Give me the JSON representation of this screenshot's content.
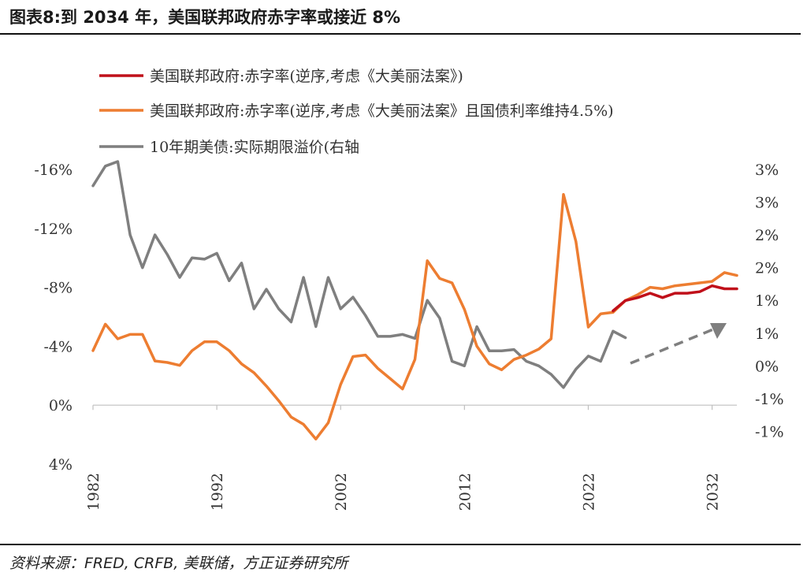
{
  "title": "图表8:到 2034 年，美国联邦政府赤字率或接近 8%",
  "source": "资料来源：FRED, CRFB, 美联储，方正证券研究所",
  "colors": {
    "series1": "#C0101A",
    "series2": "#ED7D31",
    "series3": "#7F7F7F",
    "arrow": "#7F7F7F"
  },
  "chart_data": {
    "type": "line",
    "title": "图表8:到 2034 年，美国联邦政府赤字率或接近 8%",
    "x_ticks": [
      "1982",
      "1992",
      "2002",
      "2012",
      "2022",
      "2032"
    ],
    "x_range": [
      1982,
      2034
    ],
    "y_left": {
      "range": [
        4,
        -16
      ],
      "ticks": [
        -16,
        -12,
        -8,
        -4,
        0,
        4
      ],
      "tick_labels": [
        "-16%",
        "-12%",
        "-8%",
        "-4%",
        "0%",
        "4%"
      ],
      "inverted": true
    },
    "y_right": {
      "range": [
        -1.5,
        3
      ],
      "ticks": [
        3,
        2.5,
        2,
        1.5,
        1,
        0.5,
        0,
        -0.5,
        -1
      ],
      "tick_labels": [
        "3%",
        "3%",
        "2%",
        "2%",
        "1%",
        "1%",
        "0%",
        "-1%",
        "-1%"
      ]
    },
    "legend": [
      "美国联邦政府:赤字率(逆序,考虑《大美丽法案》)",
      "美国联邦政府:赤字率(逆序,考虑《大美丽法案》且国债利率维持4.5%)",
      "10年期美债:实际期限溢价(右轴"
    ],
    "series": [
      {
        "name": "美国联邦政府:赤字率(逆序,考虑《大美丽法案》)",
        "axis": "left",
        "x": [
          2024,
          2025,
          2026,
          2027,
          2028,
          2029,
          2030,
          2031,
          2032,
          2033,
          2034
        ],
        "values": [
          -6.4,
          -7.1,
          -7.3,
          -7.6,
          -7.3,
          -7.6,
          -7.6,
          -7.7,
          -8.1,
          -7.9,
          -7.9
        ]
      },
      {
        "name": "美国联邦政府:赤字率(逆序,考虑《大美丽法案》且国债利率维持4.5%)",
        "axis": "left",
        "x": [
          1982,
          1983,
          1984,
          1985,
          1986,
          1987,
          1988,
          1989,
          1990,
          1991,
          1992,
          1993,
          1994,
          1995,
          1996,
          1997,
          1998,
          1999,
          2000,
          2001,
          2002,
          2003,
          2004,
          2005,
          2006,
          2007,
          2008,
          2009,
          2010,
          2011,
          2012,
          2013,
          2014,
          2015,
          2016,
          2017,
          2018,
          2019,
          2020,
          2021,
          2022,
          2023,
          2024,
          2025,
          2026,
          2027,
          2028,
          2029,
          2030,
          2031,
          2032,
          2033,
          2034
        ],
        "values": [
          -3.7,
          -5.5,
          -4.5,
          -4.8,
          -4.8,
          -3,
          -2.9,
          -2.7,
          -3.7,
          -4.3,
          -4.3,
          -3.7,
          -2.8,
          -2.2,
          -1.3,
          -0.3,
          0.8,
          1.3,
          2.3,
          1.2,
          -1.4,
          -3.3,
          -3.4,
          -2.5,
          -1.8,
          -1.1,
          -3.1,
          -9.8,
          -8.6,
          -8.3,
          -6.5,
          -4,
          -2.8,
          -2.4,
          -3.1,
          -3.4,
          -3.8,
          -4.5,
          -14.3,
          -11.1,
          -5.3,
          -6.2,
          -6.3,
          -7.1,
          -7.5,
          -8,
          -7.9,
          -8.1,
          -8.2,
          -8.3,
          -8.4,
          -9.0,
          -8.8
        ]
      },
      {
        "name": "10年期美债:实际期限溢价(右轴",
        "axis": "right",
        "x": [
          1982,
          1983,
          1984,
          1985,
          1986,
          1987,
          1988,
          1989,
          1990,
          1991,
          1992,
          1993,
          1994,
          1995,
          1996,
          1997,
          1998,
          1999,
          2000,
          2001,
          2002,
          2003,
          2004,
          2005,
          2006,
          2007,
          2008,
          2009,
          2010,
          2011,
          2012,
          2013,
          2014,
          2015,
          2016,
          2017,
          2018,
          2019,
          2020,
          2021,
          2022,
          2023,
          2024,
          2025
        ],
        "values": [
          2.75,
          3.05,
          3.12,
          2.0,
          1.5,
          2.0,
          1.7,
          1.35,
          1.65,
          1.63,
          1.72,
          1.3,
          1.57,
          0.87,
          1.17,
          0.87,
          0.67,
          1.35,
          0.6,
          1.35,
          0.87,
          1.05,
          0.77,
          0.45,
          0.45,
          0.48,
          0.42,
          1.0,
          0.73,
          0.07,
          0.0,
          0.6,
          0.23,
          0.23,
          0.25,
          0.07,
          0.0,
          -0.13,
          -0.33,
          -0.05,
          0.15,
          0.07,
          0.53,
          0.43
        ]
      }
    ],
    "annotation": "dashed upward arrow from 2025 toward 2033 on the right axis"
  }
}
